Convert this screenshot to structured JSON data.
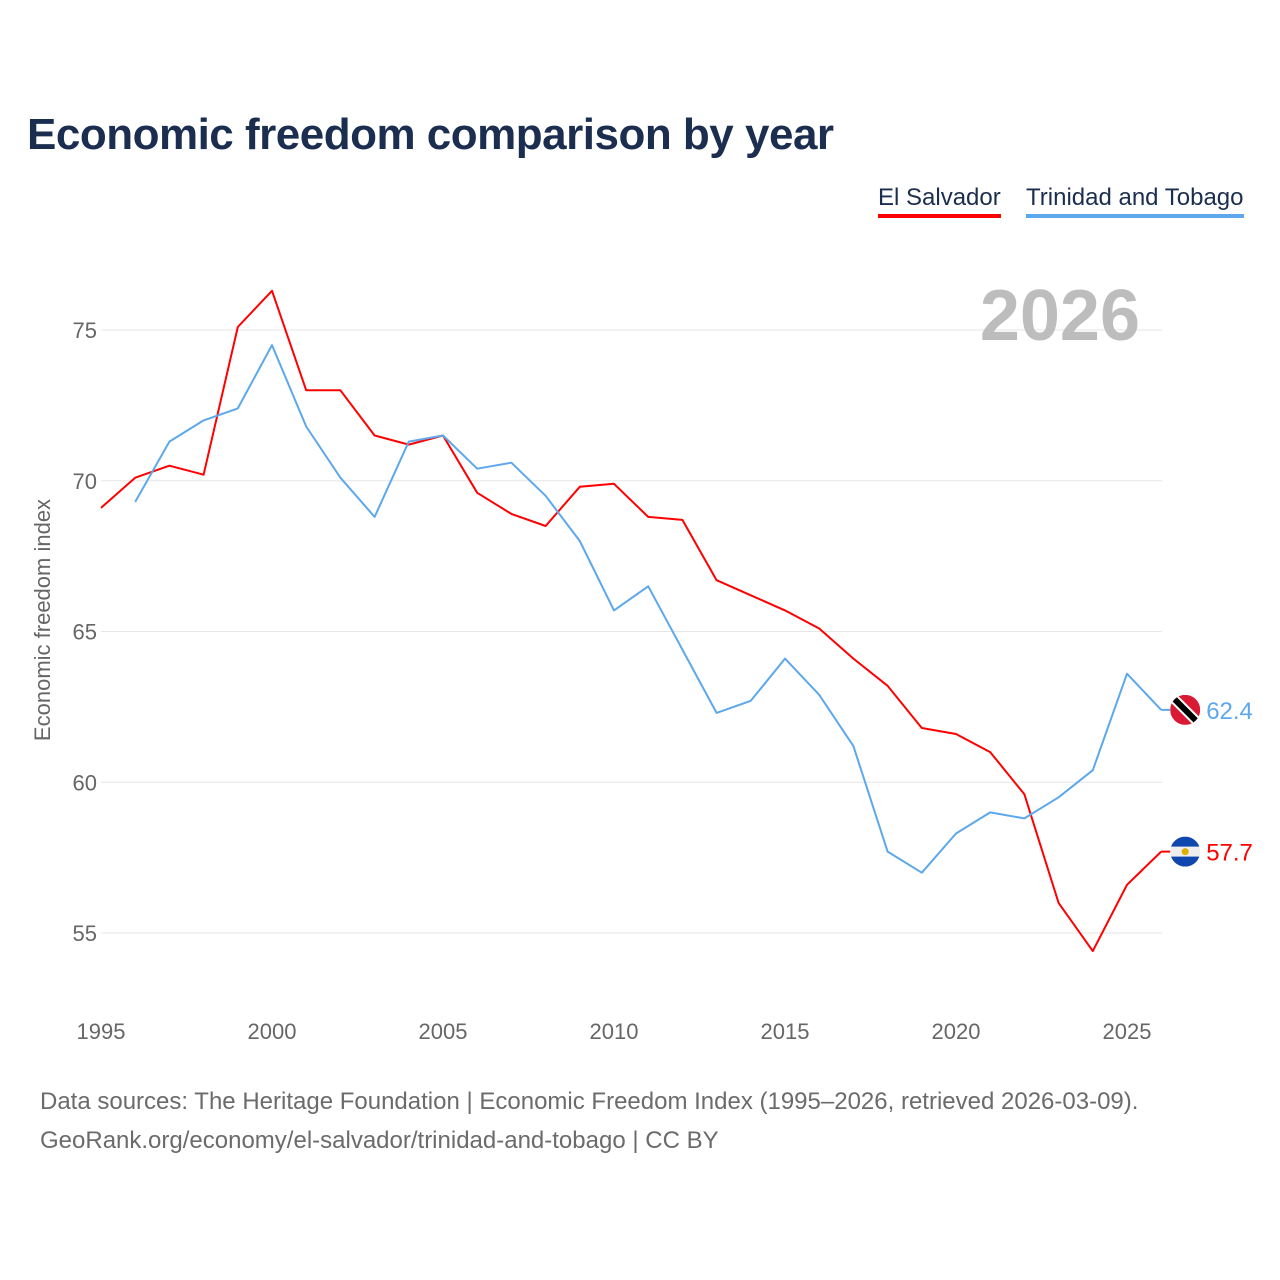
{
  "title": "Economic freedom comparison by year",
  "legend": [
    "El Salvador",
    "Trinidad and Tobago"
  ],
  "sources": {
    "line1": "Data sources: The Heritage Foundation | Economic Freedom Index (1995–2026, retrieved 2026-03-09).",
    "line2": "GeoRank.org/economy/el-salvador/trinidad-and-tobago | CC BY"
  },
  "chart_data": {
    "type": "line",
    "title": "Economic freedom comparison by year",
    "xlabel": "",
    "ylabel": "Economic freedom index",
    "year_label": "2026",
    "xlim": [
      1995,
      2026
    ],
    "ylim": [
      53,
      77
    ],
    "x_ticks": [
      1995,
      2000,
      2005,
      2010,
      2015,
      2020,
      2025
    ],
    "y_ticks": [
      55,
      60,
      65,
      70,
      75
    ],
    "grid": true,
    "legend_position": "top-right",
    "series": [
      {
        "name": "El Salvador",
        "color": "#ff0000",
        "end_label": "57.7",
        "x": [
          1995,
          1996,
          1997,
          1998,
          1999,
          2000,
          2001,
          2002,
          2003,
          2004,
          2005,
          2006,
          2007,
          2008,
          2009,
          2010,
          2011,
          2012,
          2013,
          2014,
          2015,
          2016,
          2017,
          2018,
          2019,
          2020,
          2021,
          2022,
          2023,
          2024,
          2025,
          2026
        ],
        "values": [
          69.1,
          70.1,
          70.5,
          70.2,
          75.1,
          76.3,
          73.0,
          73.0,
          71.5,
          71.2,
          71.5,
          69.6,
          68.9,
          68.5,
          69.8,
          69.9,
          68.8,
          68.7,
          66.7,
          66.2,
          65.7,
          65.1,
          64.1,
          63.2,
          61.8,
          61.6,
          61.0,
          59.6,
          56.0,
          54.4,
          56.6,
          57.7
        ]
      },
      {
        "name": "Trinidad and Tobago",
        "color": "#5da8ec",
        "end_label": "62.4",
        "x": [
          1996,
          1997,
          1998,
          1999,
          2000,
          2001,
          2002,
          2003,
          2004,
          2005,
          2006,
          2007,
          2008,
          2009,
          2010,
          2011,
          2012,
          2013,
          2014,
          2015,
          2016,
          2017,
          2018,
          2019,
          2020,
          2021,
          2022,
          2023,
          2024,
          2025,
          2026
        ],
        "values": [
          69.3,
          71.3,
          72.0,
          72.4,
          74.5,
          71.8,
          70.1,
          68.8,
          71.3,
          71.5,
          70.4,
          70.6,
          69.5,
          68.0,
          65.7,
          66.5,
          64.4,
          62.3,
          62.7,
          64.1,
          62.9,
          61.2,
          57.7,
          57.0,
          58.3,
          59.0,
          58.8,
          59.5,
          60.4,
          63.6,
          62.4
        ]
      }
    ]
  }
}
